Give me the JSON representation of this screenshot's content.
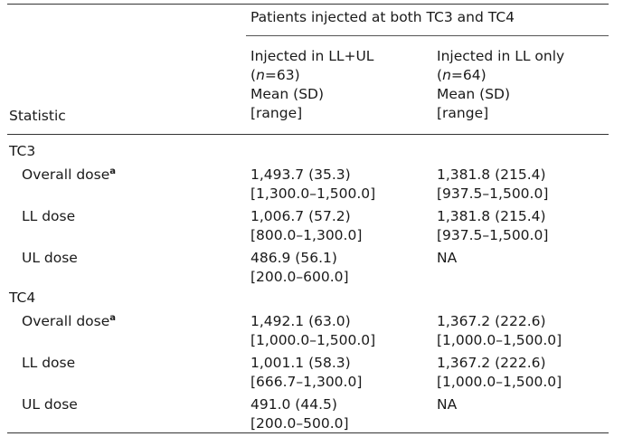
{
  "table": {
    "group_header": "Patients injected at both TC3 and TC4",
    "row_header_label": "Statistic",
    "columns": [
      {
        "title": "Injected in LL+UL",
        "n_prefix": "(",
        "n_var": "n",
        "n_suffix": "=63)",
        "stat_line": "Mean (SD)",
        "range_line": "[range]"
      },
      {
        "title": "Injected in LL only",
        "n_prefix": "(",
        "n_var": "n",
        "n_suffix": "=64)",
        "stat_line": "Mean (SD)",
        "range_line": "[range]"
      }
    ],
    "sections": [
      {
        "label": "TC3",
        "rows": [
          {
            "label": "Overall dose",
            "sup": "a",
            "c1_mean": "1,493.7 (35.3)",
            "c1_range": "[1,300.0–1,500.0]",
            "c2_mean": "1,381.8 (215.4)",
            "c2_range": "[937.5–1,500.0]"
          },
          {
            "label": "LL dose",
            "sup": "",
            "c1_mean": "1,006.7 (57.2)",
            "c1_range": "[800.0–1,300.0]",
            "c2_mean": "1,381.8 (215.4)",
            "c2_range": "[937.5–1,500.0]"
          },
          {
            "label": "UL dose",
            "sup": "",
            "c1_mean": "486.9 (56.1)",
            "c1_range": "[200.0–600.0]",
            "c2_mean": "NA",
            "c2_range": ""
          }
        ]
      },
      {
        "label": "TC4",
        "rows": [
          {
            "label": "Overall dose",
            "sup": "a",
            "c1_mean": "1,492.1 (63.0)",
            "c1_range": "[1,000.0–1,500.0]",
            "c2_mean": "1,367.2 (222.6)",
            "c2_range": "[1,000.0–1,500.0]"
          },
          {
            "label": "LL dose",
            "sup": "",
            "c1_mean": "1,001.1 (58.3)",
            "c1_range": "[666.7–1,300.0]",
            "c2_mean": "1,367.2 (222.6)",
            "c2_range": "[1,000.0–1,500.0]"
          },
          {
            "label": "UL dose",
            "sup": "",
            "c1_mean": "491.0 (44.5)",
            "c1_range": "[200.0–500.0]",
            "c2_mean": "NA",
            "c2_range": ""
          }
        ]
      }
    ]
  }
}
